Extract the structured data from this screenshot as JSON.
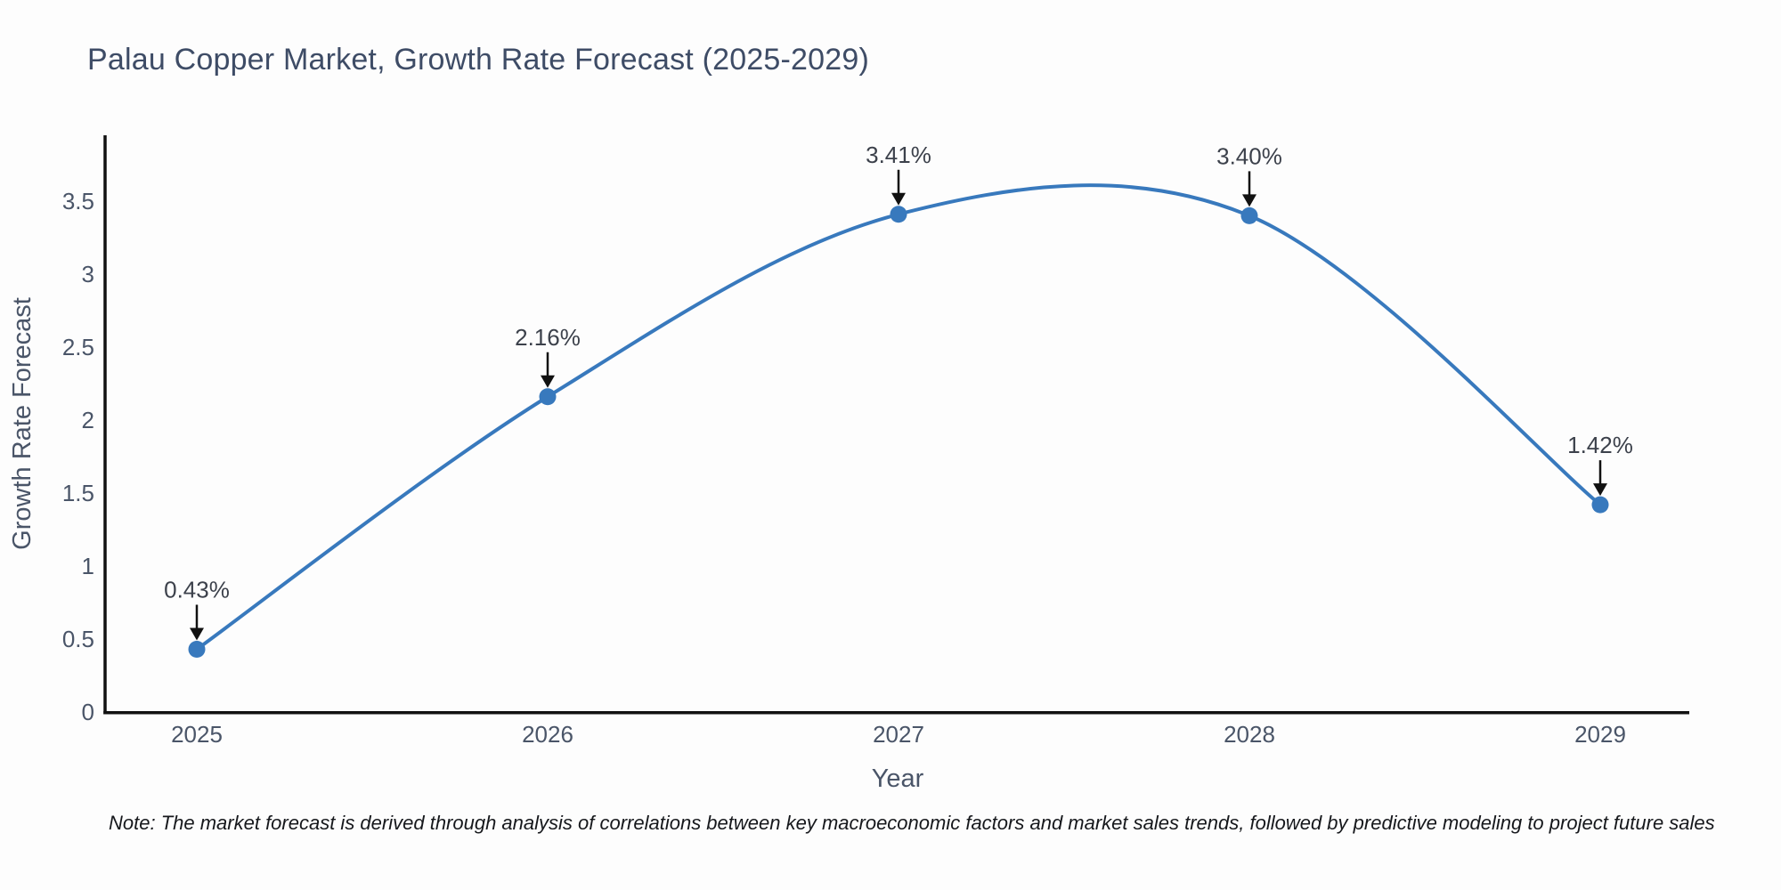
{
  "title": "Palau Copper Market, Growth Rate Forecast (2025-2029)",
  "note": "Note: The market forecast is derived through analysis of correlations between key macroeconomic factors and market sales trends, followed by predictive modeling to project future sales",
  "chart_data": {
    "type": "line",
    "title": "Palau Copper Market, Growth Rate Forecast (2025-2029)",
    "x": [
      2025,
      2026,
      2027,
      2028,
      2029
    ],
    "values": [
      0.43,
      2.16,
      3.41,
      3.4,
      1.42
    ],
    "point_labels": [
      "0.43%",
      "2.16%",
      "3.41%",
      "3.40%",
      "1.42%"
    ],
    "xlabel": "Year",
    "ylabel": "Growth Rate Forecast",
    "xticks": [
      "2025",
      "2026",
      "2027",
      "2028",
      "2029"
    ],
    "yticks": [
      0,
      0.5,
      1,
      1.5,
      2,
      2.5,
      3,
      3.5
    ],
    "ylim": [
      0,
      3.94
    ],
    "smooth": true,
    "grid": false,
    "legend": null,
    "line_color": "#3879bd",
    "marker_color": "#3879bd",
    "axis_color": "#111111",
    "annotation_arrow_color": "#111111",
    "tick_label_color": "#4a5568",
    "title_color": "#3e4c66",
    "background_color": "#fdfdfd"
  }
}
